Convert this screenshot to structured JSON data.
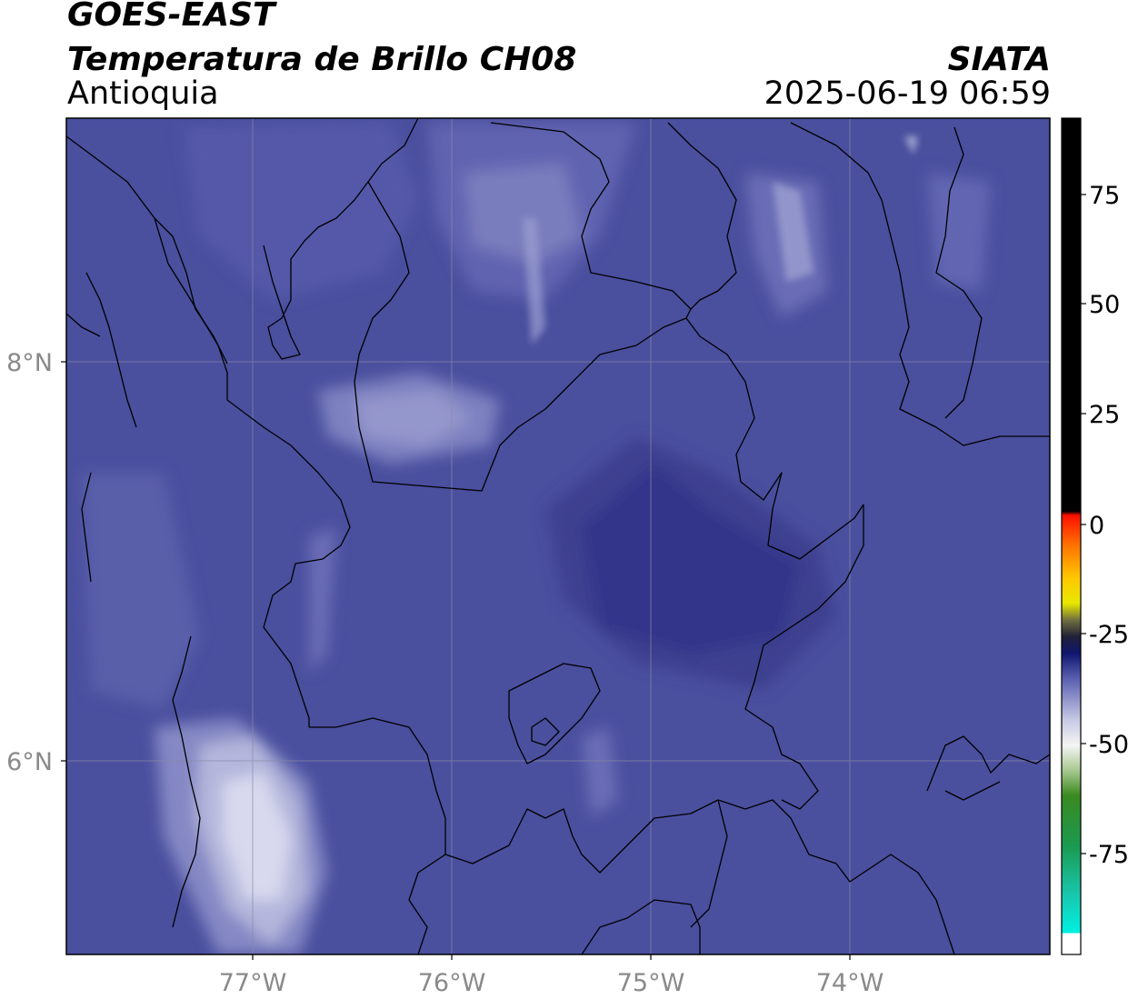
{
  "header": {
    "satellite": "GOES-EAST",
    "product": "Temperatura de Brillo CH08",
    "region": "Antioquia",
    "source": "SIATA",
    "timestamp": "2025-06-19 06:59"
  },
  "map": {
    "lon_ticks": [
      {
        "label": "77°W",
        "value": -77
      },
      {
        "label": "76°W",
        "value": -76
      },
      {
        "label": "75°W",
        "value": -75
      },
      {
        "label": "74°W",
        "value": -74
      }
    ],
    "lat_ticks": [
      {
        "label": "8°N",
        "value": 8
      },
      {
        "label": "6°N",
        "value": 6
      }
    ],
    "colors": {
      "background": "#4a4f9e",
      "dark_core": "#2e3388",
      "light_cloud": "#8c8fc6",
      "bright_cloud": "#d8d9ee",
      "border": "#000000",
      "grid": "#8a8aa8"
    }
  },
  "colorbar": {
    "ticks": [
      {
        "label": "75",
        "value": 75
      },
      {
        "label": "50",
        "value": 50
      },
      {
        "label": "25",
        "value": 25
      },
      {
        "label": "0",
        "value": 0
      },
      {
        "label": "-25",
        "value": -25
      },
      {
        "label": "-50",
        "value": -50
      },
      {
        "label": "-75",
        "value": -75
      }
    ]
  }
}
